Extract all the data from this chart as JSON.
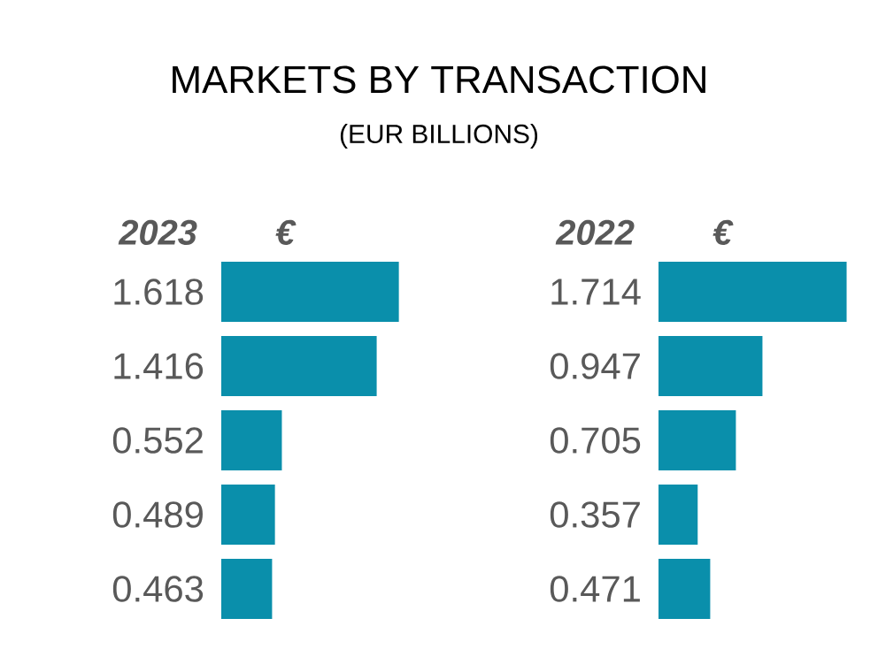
{
  "chart_data": [
    {
      "type": "bar",
      "orientation": "horizontal",
      "title": "MARKETS BY TRANSACTION",
      "subtitle": "(EUR BILLIONS)",
      "ylabel": "2023",
      "xlabel": "€",
      "categories": [
        null,
        null,
        null,
        null,
        null
      ],
      "values": [
        1.618,
        1.416,
        0.552,
        0.489,
        0.463
      ],
      "color": "#0a8fab",
      "data_labels": true
    },
    {
      "type": "bar",
      "orientation": "horizontal",
      "ylabel": "2022",
      "xlabel": "€",
      "categories": [
        null,
        null,
        null,
        null,
        null
      ],
      "values": [
        1.714,
        0.947,
        0.705,
        0.357,
        0.471
      ],
      "color": "#0a8fab",
      "data_labels": true
    }
  ]
}
